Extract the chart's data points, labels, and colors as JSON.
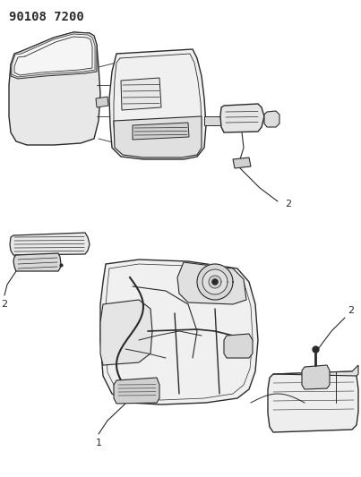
{
  "title": "90108 7200",
  "bg_color": "#ffffff",
  "line_color": "#2a2a2a",
  "light_gray": "#cccccc",
  "mid_gray": "#aaaaaa",
  "dark_gray": "#555555",
  "label_1": "1",
  "label_2": "2",
  "figwidth": 4.03,
  "figheight": 5.33,
  "dpi": 100,
  "title_fontsize": 10,
  "label_fontsize": 8
}
